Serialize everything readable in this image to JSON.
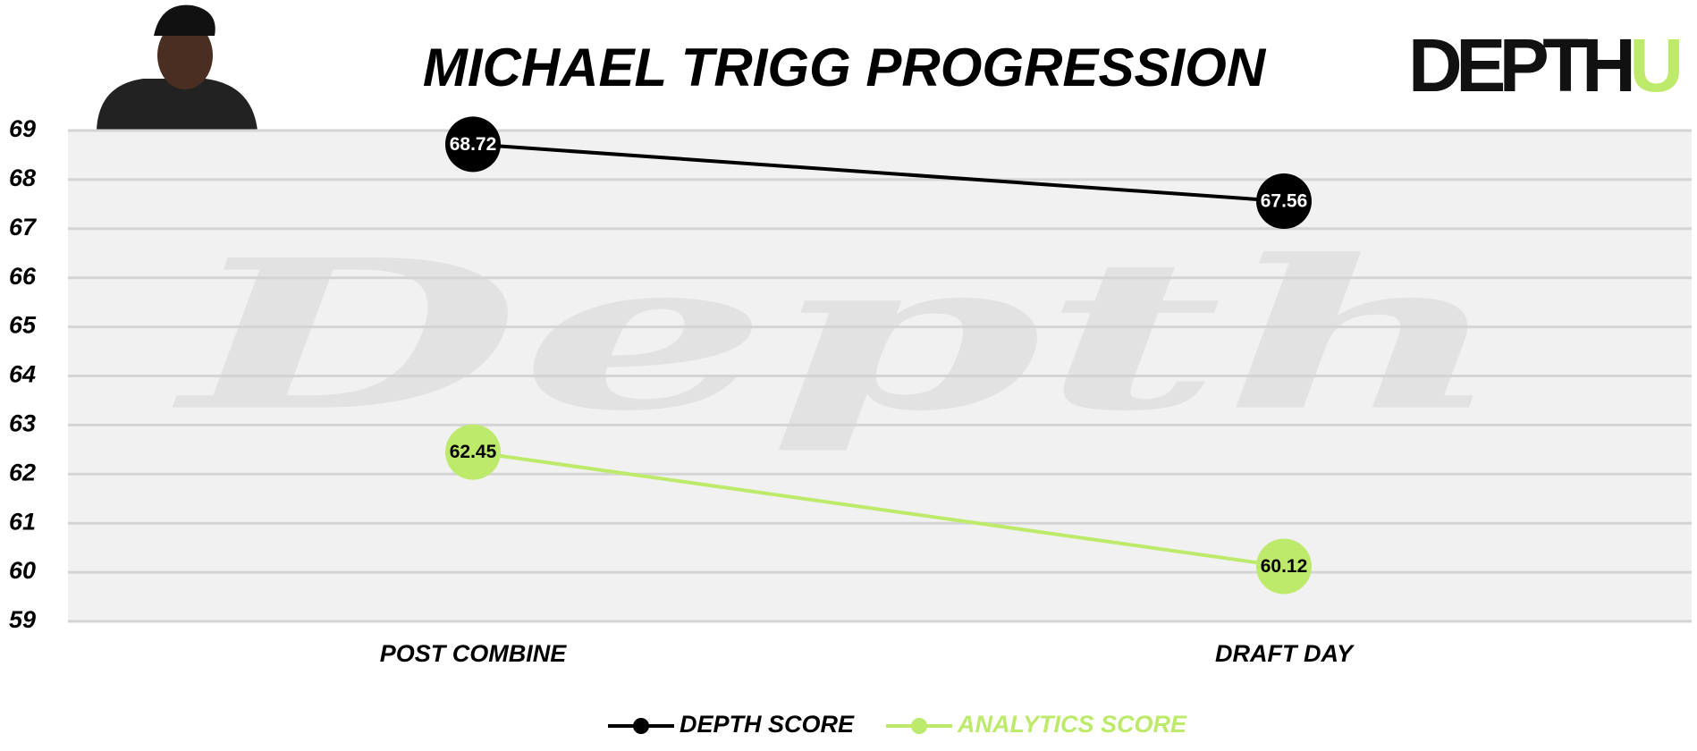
{
  "chart_data": {
    "type": "line",
    "title": "MICHAEL TRIGG PROGRESSION",
    "logo": {
      "main": "DEPTH",
      "accent": "U"
    },
    "watermark": "Depth",
    "categories": [
      "POST COMBINE",
      "DRAFT DAY"
    ],
    "series": [
      {
        "name": "DEPTH SCORE",
        "color": "#000000",
        "values": [
          68.72,
          67.56
        ]
      },
      {
        "name": "ANALYTICS SCORE",
        "color": "#bdea6a",
        "values": [
          62.45,
          60.12
        ]
      }
    ],
    "ylim": [
      59,
      69
    ],
    "yticks": [
      59,
      60,
      61,
      62,
      63,
      64,
      65,
      66,
      67,
      68,
      69
    ],
    "grid": true,
    "legend": "bottom"
  }
}
